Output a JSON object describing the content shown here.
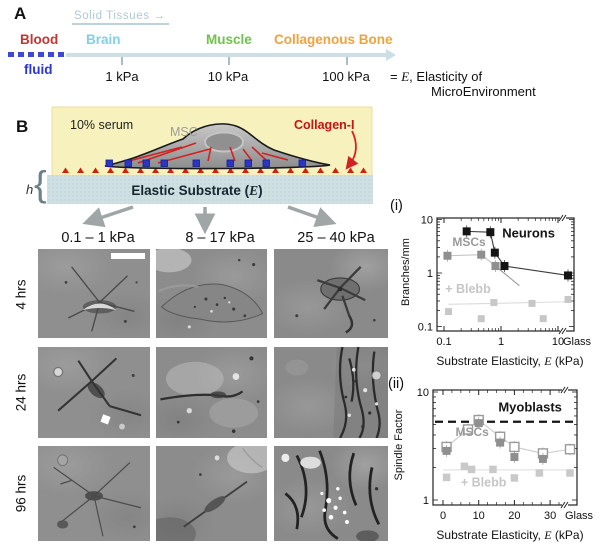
{
  "panel_a": {
    "label": "A",
    "solid_tissues": "Solid Tissues",
    "solid_tissues_arrow": "→",
    "tissues": [
      {
        "name": "Blood",
        "color": "#c13535"
      },
      {
        "name": "Brain",
        "color": "#82cfe3"
      },
      {
        "name": "Muscle",
        "color": "#6fc24e"
      },
      {
        "name": "Collagenous Bone",
        "color": "#f0a23c"
      }
    ],
    "fluid_label": "fluid",
    "tick_labels": [
      "1 kPa",
      "10 kPa",
      "100 kPa"
    ],
    "eq_prefix": "= ",
    "eq_e": "E",
    "eq_rest": ", Elasticity of",
    "eq_line2": "MicroEnvironment"
  },
  "panel_b": {
    "label": "B",
    "serum": "10% serum",
    "msc": "MSC",
    "collagen": "Collagen-I",
    "substrate_prefix": "Elastic Substrate (",
    "substrate_e": "E",
    "substrate_suffix": ")",
    "h_label": "h"
  },
  "grid": {
    "columns": [
      "0.1 – 1 kPa",
      "8 – 17 kPa",
      "25 – 40 kPa"
    ],
    "rows": [
      "4 hrs",
      "24 hrs",
      "96 hrs"
    ]
  },
  "chart_data": [
    {
      "id": "i",
      "type": "scatter",
      "panel_label": "(i)",
      "ylabel": "Branches/mm",
      "xlabel_parts": [
        "Substrate Elasticity, ",
        "E",
        " (kPa)"
      ],
      "x_scale": "log",
      "y_scale": "log",
      "xlim": [
        0.1,
        10
      ],
      "ylim": [
        0.1,
        10
      ],
      "x_ticks": [
        "0.1",
        "1",
        "10"
      ],
      "x_extra_tick": "Glass",
      "y_ticks": [
        "0.1",
        "1",
        "10"
      ],
      "grid": false,
      "series": [
        {
          "name": "+ Blebb trend",
          "marker": "none",
          "ms": 0,
          "color": "#dcdcdc",
          "line": "#dcdcdc",
          "points": [
            [
              0.12,
              0.26
            ],
            [
              "glass",
              0.29
            ]
          ]
        },
        {
          "name": "+ Blebb",
          "marker": "filled",
          "ms": 7,
          "color": "#c7c7c7",
          "line": null,
          "points": [
            [
              0.12,
              0.19
            ],
            [
              0.45,
              0.14
            ],
            [
              0.75,
              0.28
            ],
            [
              3.5,
              0.27
            ],
            [
              5.5,
              0.14
            ],
            [
              "glass",
              0.32
            ]
          ]
        },
        {
          "name": "MSCs trend",
          "marker": "none",
          "ms": 0,
          "color": "#9a9a9a",
          "line": "#9a9a9a",
          "points": [
            [
              0.8,
              1.35
            ],
            [
              2.1,
              0.58
            ]
          ]
        },
        {
          "name": "MSCs",
          "marker": "filled",
          "ms": 8,
          "color": "#8f8f8f",
          "line": "#c3c3c3",
          "ebar": true,
          "points": [
            [
              0.115,
              2.1
            ],
            [
              0.45,
              2.2
            ],
            [
              0.8,
              1.35
            ]
          ]
        },
        {
          "name": "Neurons",
          "marker": "filled",
          "ms": 8,
          "color": "#151515",
          "line": "#3c3c3c",
          "ebar": true,
          "points": [
            [
              0.25,
              6.0
            ],
            [
              0.65,
              5.8
            ],
            [
              0.78,
              2.4
            ],
            [
              1.15,
              1.35
            ],
            [
              "glass",
              0.9
            ]
          ]
        }
      ],
      "annotations": [
        {
          "text": "Neurons",
          "x": 1.05,
          "y": 4.6,
          "color": "#151515",
          "size": 13,
          "weight": 600
        },
        {
          "text": "MSCs",
          "x": 0.14,
          "y": 3.2,
          "color": "#9a9a9a",
          "size": 12,
          "weight": 600
        },
        {
          "text": "+ Blebb",
          "x": 0.105,
          "y": 0.42,
          "color": "#c6c6c6",
          "size": 12.5,
          "weight": 600
        }
      ]
    },
    {
      "id": "ii",
      "type": "scatter",
      "panel_label": "(ii)",
      "ylabel": "Spindle Factor",
      "xlabel_parts": [
        "Substrate Elasticity, ",
        "E",
        " (kPa)"
      ],
      "x_scale": "linear",
      "y_scale": "log",
      "xlim": [
        0,
        34
      ],
      "ylim": [
        1,
        10
      ],
      "x_ticks": [
        "0",
        "10",
        "20",
        "30"
      ],
      "x_extra_tick": "Glass",
      "y_ticks": [
        "1",
        "10"
      ],
      "grid": false,
      "hline": {
        "y": 5.3,
        "style": "dashed",
        "color": "#151515",
        "label": "Myoblasts"
      },
      "series": [
        {
          "name": "+ Blebb trend",
          "marker": "none",
          "ms": 0,
          "color": "#e0e0e0",
          "line": "#e0e0e0",
          "points": [
            [
              0,
              1.9
            ],
            [
              "glass",
              1.9
            ]
          ]
        },
        {
          "name": "+ Blebb",
          "marker": "filled",
          "ms": 7.5,
          "color": "#c9c9c9",
          "line": null,
          "points": [
            [
              1,
              1.62
            ],
            [
              6,
              2.05
            ],
            [
              8,
              1.92
            ],
            [
              14,
              1.92
            ],
            [
              20,
              1.6
            ],
            [
              27,
              1.78
            ],
            [
              "glass",
              1.78
            ]
          ]
        },
        {
          "name": "MSCs untreated",
          "marker": "open",
          "ms": 9,
          "color": "#9a9a9a",
          "line": "#cccccc",
          "ebar": true,
          "points": [
            [
              1,
              3.1
            ],
            [
              7,
              4.5
            ],
            [
              10,
              5.5
            ],
            [
              16,
              3.85
            ],
            [
              20,
              3.1
            ],
            [
              28,
              2.7
            ],
            [
              "glass",
              2.95
            ]
          ]
        },
        {
          "name": "MSCs",
          "marker": "filled",
          "ms": 8,
          "color": "#8f8f8f",
          "line": null,
          "ebar": true,
          "points": [
            [
              1,
              2.85
            ],
            [
              10,
              5.15
            ],
            [
              16,
              3.4
            ],
            [
              20,
              2.5
            ],
            [
              28,
              2.4
            ]
          ]
        }
      ],
      "annotations": [
        {
          "text": "Myoblasts",
          "x": 15.5,
          "y": 6.6,
          "color": "#151515",
          "size": 13,
          "weight": 600
        },
        {
          "text": "MSCs",
          "x": 3.5,
          "y": 3.9,
          "color": "#9a9a9a",
          "size": 12,
          "weight": 600
        },
        {
          "text": "+ Blebb",
          "x": 5,
          "y": 1.33,
          "color": "#c6c6c6",
          "size": 12.5,
          "weight": 600
        }
      ]
    }
  ]
}
